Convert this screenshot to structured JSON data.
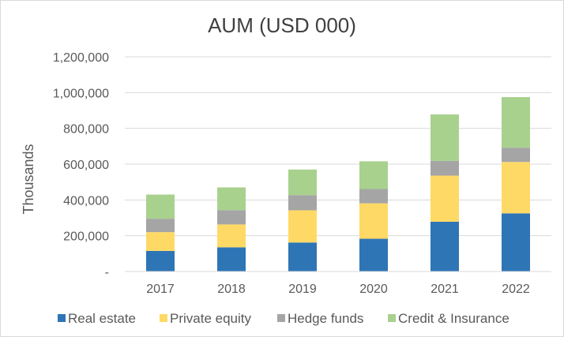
{
  "chart_data": {
    "type": "bar",
    "stacked": true,
    "title": "AUM (USD 000)",
    "xlabel": "",
    "ylabel": "Thousands",
    "categories": [
      "2017",
      "2018",
      "2019",
      "2020",
      "2021",
      "2022"
    ],
    "ylim": [
      0,
      1200000
    ],
    "yticks": [
      0,
      200000,
      400000,
      600000,
      800000,
      1000000,
      1200000
    ],
    "ytick_labels": [
      "-",
      "200,000",
      "400,000",
      "600,000",
      "800,000",
      "1,000,000",
      "1,200,000"
    ],
    "grid": true,
    "legend_position": "bottom",
    "series": [
      {
        "name": "Real estate",
        "color": "#2e75b6",
        "values": [
          115000,
          135000,
          162000,
          183000,
          278000,
          325000
        ]
      },
      {
        "name": "Private equity",
        "color": "#ffd966",
        "values": [
          105000,
          128000,
          180000,
          198000,
          258000,
          287000
        ]
      },
      {
        "name": "Hedge funds",
        "color": "#a5a5a5",
        "values": [
          75000,
          80000,
          85000,
          80000,
          82000,
          80000
        ]
      },
      {
        "name": "Credit & Insurance",
        "color": "#a9d18e",
        "values": [
          135000,
          127000,
          143000,
          155000,
          260000,
          283000
        ]
      }
    ]
  }
}
